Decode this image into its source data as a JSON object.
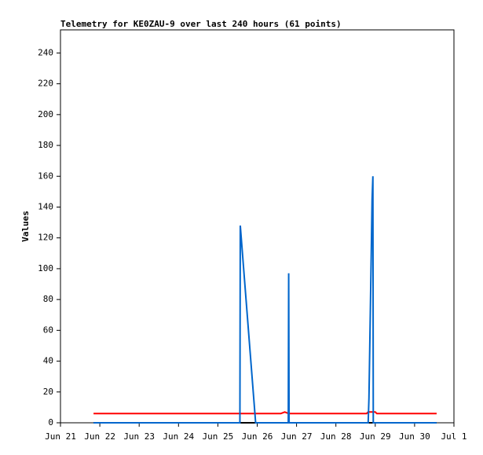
{
  "chart_data": {
    "type": "line",
    "title": "Telemetry for KE0ZAU-9 over last 240 hours (61 points)",
    "ylabel": "Values",
    "xlim": [
      0,
      10
    ],
    "xticks": [
      {
        "value": 0,
        "label": "Jun 21"
      },
      {
        "value": 1,
        "label": "Jun 22"
      },
      {
        "value": 2,
        "label": "Jun 23"
      },
      {
        "value": 3,
        "label": "Jun 24"
      },
      {
        "value": 4,
        "label": "Jun 25"
      },
      {
        "value": 5,
        "label": "Jun 26"
      },
      {
        "value": 6,
        "label": "Jun 27"
      },
      {
        "value": 7,
        "label": "Jun 28"
      },
      {
        "value": 8,
        "label": "Jun 29"
      },
      {
        "value": 9,
        "label": "Jun 30"
      },
      {
        "value": 10,
        "label": "Jul 1"
      }
    ],
    "ylim": [
      0,
      255
    ],
    "yticks": [
      0,
      20,
      40,
      60,
      80,
      100,
      120,
      140,
      160,
      180,
      200,
      220,
      240
    ],
    "series": [
      {
        "color": "#000000",
        "x": [
          0.84,
          9.56
        ],
        "values": [
          0,
          0
        ]
      },
      {
        "color": "#ff0000",
        "x": [
          0.84,
          5.6,
          5.7,
          5.8,
          7.78,
          7.82,
          8.0,
          8.04,
          9.56
        ],
        "values": [
          6,
          6,
          7,
          6,
          6,
          7,
          7,
          6,
          6
        ]
      },
      {
        "color": "#0066cc",
        "x": [
          0.84,
          4.56,
          4.57,
          4.96,
          5.79,
          5.8,
          5.81,
          7.82,
          7.84,
          7.86,
          7.88,
          7.9,
          7.92,
          7.94,
          7.95,
          9.56
        ],
        "values": [
          0,
          0,
          128,
          0,
          0,
          97,
          0,
          0,
          16,
          48,
          80,
          112,
          145,
          160,
          0,
          0
        ]
      }
    ]
  }
}
